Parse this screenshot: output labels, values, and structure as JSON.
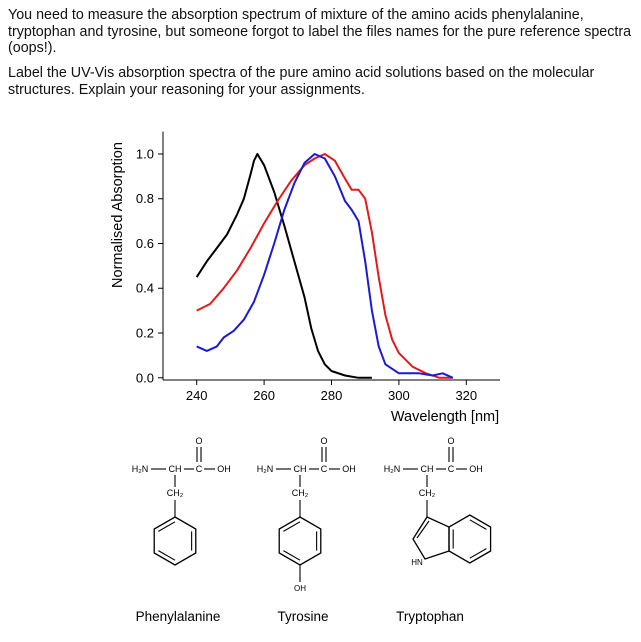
{
  "question": {
    "paragraphs": [
      "You need to measure the absorption spectrum of mixture of the amino acids phenylalanine, tryptophan and tyrosine, but someone forgot to label the files names for the pure reference spectra (oops!).",
      "Label the UV-Vis absorption spectra of the pure amino acid solutions based on the molecular structures. Explain your reasoning for your assignments."
    ]
  },
  "chart_data": {
    "type": "line",
    "x_label": "Wavelength [nm]",
    "y_label": "Normalised Absorption",
    "xlim": [
      230,
      330
    ],
    "xticks": [
      240,
      260,
      280,
      300,
      320
    ],
    "ylim": [
      -0.01,
      1.1
    ],
    "yticks": [
      {
        "value": 0,
        "label": "0.0"
      },
      0.2,
      0.4,
      0.6,
      0.8,
      {
        "value": 1,
        "label": "1.0"
      }
    ],
    "series": [
      {
        "color": "#000000",
        "x": [
          240,
          243,
          246,
          249,
          252,
          254,
          256,
          257,
          258,
          260,
          263,
          266,
          269,
          272,
          274,
          276,
          278,
          280,
          284,
          288,
          292
        ],
        "values": [
          0.45,
          0.52,
          0.58,
          0.64,
          0.73,
          0.8,
          0.91,
          0.97,
          1.0,
          0.95,
          0.83,
          0.68,
          0.52,
          0.36,
          0.22,
          0.12,
          0.06,
          0.03,
          0.01,
          0,
          0
        ]
      },
      {
        "color": "#e31a1c",
        "x": [
          240,
          244,
          248,
          252,
          256,
          260,
          264,
          268,
          272,
          275,
          278,
          281,
          284,
          286,
          288,
          290,
          292,
          294,
          296,
          298,
          300,
          304,
          308,
          312,
          316
        ],
        "values": [
          0.3,
          0.33,
          0.4,
          0.48,
          0.58,
          0.69,
          0.79,
          0.88,
          0.95,
          0.98,
          1.0,
          0.97,
          0.89,
          0.84,
          0.84,
          0.8,
          0.65,
          0.45,
          0.28,
          0.17,
          0.11,
          0.05,
          0.02,
          0,
          0
        ]
      },
      {
        "color": "#1a1ad6",
        "x": [
          240,
          243,
          246,
          248,
          251,
          254,
          257,
          260,
          263,
          266,
          269,
          272,
          275,
          278,
          281,
          284,
          286,
          288,
          290,
          292,
          294,
          296,
          300,
          306,
          310,
          313,
          316
        ],
        "values": [
          0.14,
          0.12,
          0.14,
          0.18,
          0.21,
          0.26,
          0.34,
          0.46,
          0.6,
          0.75,
          0.87,
          0.96,
          1.0,
          0.98,
          0.9,
          0.79,
          0.75,
          0.7,
          0.52,
          0.3,
          0.14,
          0.06,
          0.02,
          0.02,
          0.01,
          0.02,
          0
        ]
      }
    ]
  },
  "structures": [
    {
      "name": "Phenylalanine",
      "amine": "H₂N",
      "alpha": "CH",
      "carbonyl": "C",
      "hydroxyl": "OH",
      "oxo": "O",
      "methylene": "CH₂",
      "ring": "benzene"
    },
    {
      "name": "Tyrosine",
      "amine": "H₂N",
      "alpha": "CH",
      "carbonyl": "C",
      "hydroxyl": "OH",
      "oxo": "O",
      "methylene": "CH₂",
      "ring": "phenol",
      "ring_label": "OH"
    },
    {
      "name": "Tryptophan",
      "amine": "H₂N",
      "alpha": "CH",
      "carbonyl": "C",
      "hydroxyl": "OH",
      "oxo": "O",
      "methylene": "CH₂",
      "ring": "indole",
      "ring_label": "HN"
    }
  ]
}
